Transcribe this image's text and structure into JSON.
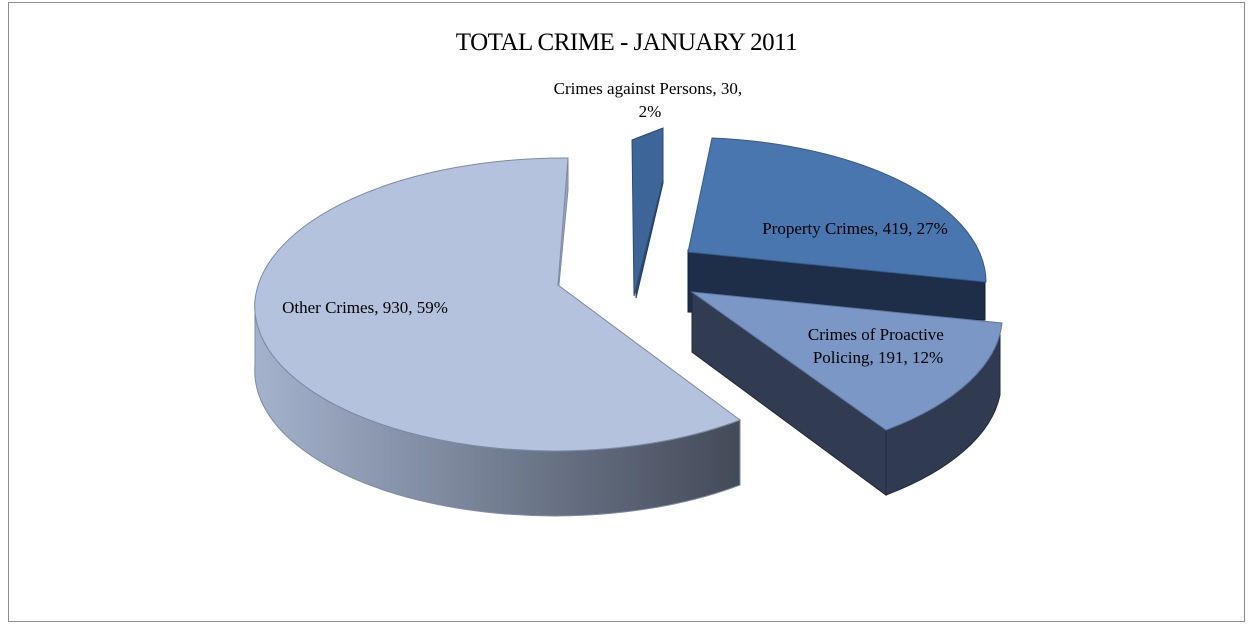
{
  "chart_data": {
    "type": "pie",
    "title": "TOTAL CRIME - JANUARY 2011",
    "slices": [
      {
        "label": "Crimes against Persons",
        "value": 30,
        "percent": "2%",
        "color": "#3e6597",
        "label_lines": [
          "Crimes against Persons, 30,",
          "2%"
        ]
      },
      {
        "label": "Property Crimes",
        "value": 419,
        "percent": "27%",
        "color": "#4a76b0",
        "label_lines": [
          "Property Crimes, 419, 27%"
        ]
      },
      {
        "label": "Crimes of Proactive Policing",
        "value": 191,
        "percent": "12%",
        "color": "#7b97c6",
        "label_lines": [
          "Crimes of Proactive",
          "Policing, 191, 12%"
        ]
      },
      {
        "label": "Other Crimes",
        "value": 930,
        "percent": "59%",
        "color": "#b4c2de",
        "label_lines": [
          "Other Crimes, 930, 59%"
        ]
      }
    ],
    "style": "3d-exploded",
    "legend": "none"
  }
}
